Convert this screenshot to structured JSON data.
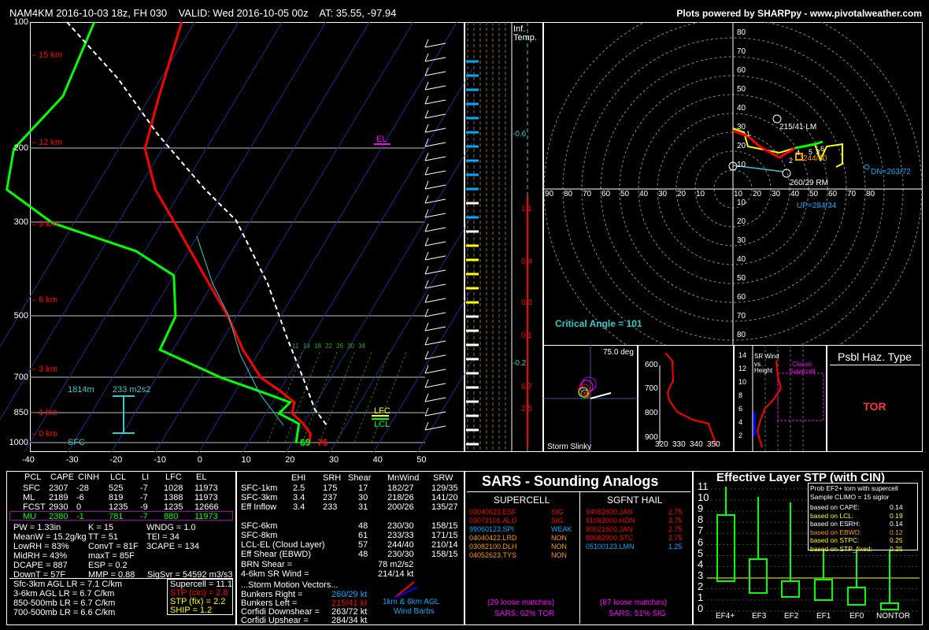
{
  "header": {
    "left": "NAM4KM 2016-10-03 18z, FH 030    VALID: Wed 2016-10-05 00z    AT: 35.55, -97.94",
    "right": "Plots powered by SHARPpy - www.pivotalweather.com"
  },
  "skewt": {
    "pressure_labels": [
      "100",
      "200",
      "300",
      "500",
      "700",
      "850",
      "1000"
    ],
    "height_labels": [
      "15 km",
      "12 km",
      "9 km",
      "6 km",
      "3 km",
      "1 km",
      "0 km"
    ],
    "temp_ticks": [
      "-40",
      "-30",
      "-20",
      "-10",
      "0",
      "10",
      "20",
      "30",
      "40",
      "50"
    ],
    "mixing_ratio_labels": [
      "11",
      "14",
      "18",
      "22",
      "26",
      "30",
      "34"
    ],
    "el_label": "EL",
    "lfc_label": "LFC",
    "lcl_label": "LCL",
    "eff_layer_bottom": "1814m",
    "eff_layer_srh": "233 m2s2",
    "sfc_label": "SFC",
    "sfc_dew": "69",
    "sfc_temp": "76"
  },
  "chart_data": [
    {
      "type": "line",
      "title": "",
      "xlabel": "",
      "ylabel": "",
      "series": [
        {
          "name": "Temperature",
          "points": [
            [
              100,
              -63
            ],
            [
              150,
              -58
            ],
            [
              200,
              -54
            ],
            [
              250,
              -46
            ],
            [
              300,
              -37
            ],
            [
              400,
              -23
            ],
            [
              500,
              -12
            ],
            [
              600,
              -4
            ],
            [
              700,
              4
            ],
            [
              750,
              10
            ],
            [
              800,
              15
            ],
            [
              850,
              16
            ],
            [
              900,
              20
            ],
            [
              950,
              23
            ],
            [
              1000,
              24
            ]
          ]
        },
        {
          "name": "Dewpoint",
          "points": [
            [
              100,
              -83
            ],
            [
              150,
              -80
            ],
            [
              200,
              -84
            ],
            [
              250,
              -80
            ],
            [
              300,
              -65
            ],
            [
              350,
              -42
            ],
            [
              400,
              -30
            ],
            [
              500,
              -24
            ],
            [
              600,
              -23
            ],
            [
              700,
              -5
            ],
            [
              750,
              5
            ],
            [
              800,
              14
            ],
            [
              850,
              13
            ],
            [
              900,
              19
            ],
            [
              950,
              20
            ],
            [
              1000,
              21
            ]
          ]
        }
      ]
    }
  ],
  "inflow": {
    "title1": "Inf.",
    "title2": "Temp.",
    "labels": [
      "-0.6",
      "1.1",
      "0.4",
      "0.3",
      "0.1",
      "-0.2",
      "6.7",
      "2.5"
    ]
  },
  "hodograph": {
    "x_labels": [
      "90",
      "80",
      "70",
      "60",
      "50",
      "40",
      "30",
      "20",
      "10",
      "10",
      "20",
      "30",
      "40",
      "50",
      "60",
      "70",
      "80"
    ],
    "y_labels": [
      "80",
      "70",
      "60",
      "50",
      "40",
      "30",
      "20",
      "10",
      "10",
      "20",
      "30",
      "40",
      "50",
      "60",
      "70",
      "80"
    ],
    "lm": "215/41 LM",
    "rm": "260/29 RM",
    "mean": "244/40",
    "dn": "DN=263/72",
    "up": "UP=284/34",
    "critical_angle": "Critical Angle = 101",
    "pts": [
      "1",
      "3",
      "4",
      "5",
      "6",
      "2"
    ]
  },
  "slinky": {
    "deg": "75.0 deg",
    "label": "Storm Slinky"
  },
  "thetae": {
    "p_labels": [
      "600",
      "700",
      "800",
      "900"
    ],
    "x_labels": [
      "320",
      "330",
      "340",
      "350"
    ]
  },
  "srwind": {
    "y_labels": [
      "14",
      "12",
      "10",
      "8",
      "6",
      "4",
      "2"
    ],
    "title": "SR Wind",
    "vs": "vs.",
    "height": "Height",
    "classic1": "Classic",
    "classic2": "Supercell"
  },
  "hazard": {
    "title": "Psbl Haz. Type",
    "value": "TOR"
  },
  "parcels": {
    "headers": [
      "PCL",
      "CAPE",
      "CINH",
      "LCL",
      "LI",
      "LFC",
      "EL"
    ],
    "rows": [
      [
        "SFC",
        "2307",
        "-28",
        "525",
        "-7",
        "1028",
        "11973"
      ],
      [
        "ML",
        "2189",
        "-6",
        "819",
        "-7",
        "1388",
        "11973"
      ],
      [
        "FCST",
        "2930",
        "0",
        "1235",
        "-9",
        "1235",
        "12666"
      ],
      [
        "MU",
        "2380",
        "-1",
        "781",
        "-7",
        "880",
        "11973"
      ]
    ],
    "left_lines": [
      "PW = 1.33in",
      "MeanW = 15.2g/kg",
      "LowRH = 83%",
      "MidRH = 43%",
      "DCAPE = 887",
      "DownT = 57F"
    ],
    "mid_lines": [
      "K = 15",
      "TT = 51",
      "ConvT = 81F",
      "maxT = 85F",
      "ESP = 0.2",
      "MMP = 0.88"
    ],
    "right_lines": [
      "WNDG = 1.0",
      "TEI = 34",
      "3CAPE = 134",
      "",
      "",
      "SigSvr = 54592 m3/s3"
    ],
    "lapse": [
      "Sfc-3km AGL LR = 7.1 C/km",
      "3-6km AGL LR = 6.7 C/km",
      "850-500mb LR = 6.7 C/km",
      "700-500mb LR = 6.6 C/km"
    ],
    "comp": [
      "Supercell = 11.1",
      "STP (cin) = 2.8",
      "STP (fix) = 2.2",
      "SHIP = 1.2"
    ]
  },
  "kinematics": {
    "headers": [
      "EHI",
      "SRH",
      "Shear",
      "MnWind",
      "SRW"
    ],
    "rows": [
      [
        "SFC-1km",
        "2.5",
        "175",
        "17",
        "182/27",
        "129/35"
      ],
      [
        "SFC-3km",
        "3.4",
        "237",
        "30",
        "218/26",
        "141/20"
      ],
      [
        "Eff Inflow",
        "3.4",
        "233",
        "31",
        "200/26",
        "135/27"
      ],
      [
        "",
        "",
        "",
        "",
        "",
        ""
      ],
      [
        "SFC-6km",
        "",
        "",
        "48",
        "230/30",
        "158/15"
      ],
      [
        "SFC-8km",
        "",
        "",
        "61",
        "233/33",
        "171/15"
      ],
      [
        "LCL-EL (Cloud Layer)",
        "",
        "",
        "57",
        "244/40",
        "210/14"
      ],
      [
        "Eff Shear (EBWD)",
        "",
        "",
        "48",
        "230/30",
        "158/15"
      ]
    ],
    "brn_label": "BRN Shear =",
    "brn_value": "78 m2/s2",
    "sr_label": "4-6km SR Wind =",
    "sr_value": "214/14 kt",
    "motion_title": "...Storm Motion Vectors...",
    "motions": [
      [
        "Bunkers Right =",
        "260/29 kt"
      ],
      [
        "Bunkers Left =",
        "215/41 kt"
      ],
      [
        "Corfidi Downshear =",
        "263/72 kt"
      ],
      [
        "Corfidi Upshear =",
        "284/34 kt"
      ]
    ],
    "barb_label1": "1km & 6km AGL",
    "barb_label2": "Wind Barbs"
  },
  "sars": {
    "title": "SARS - Sounding Analogs",
    "supercell_title": "SUPERCELL",
    "hail_title": "SGFNT HAIL",
    "supercell": [
      [
        "03040623.ESF",
        "SIG"
      ],
      [
        "03072101.ALO",
        "SIG"
      ],
      [
        "99060123.SPI",
        "WEAK"
      ],
      [
        "04040422.LRD",
        "NON"
      ],
      [
        "03082100.DLH",
        "NON"
      ],
      [
        "04052623.TYS",
        "NON"
      ]
    ],
    "hail": [
      [
        "94062600.JAN",
        "2.75"
      ],
      [
        "91062000.HON",
        "2.75"
      ],
      [
        "90021600.JAN",
        "2.75"
      ],
      [
        "89082900.STC",
        "2.75"
      ],
      [
        "05100123.LMN",
        "1.25"
      ]
    ],
    "sup_matches": "(29 loose matches)",
    "sup_pct": "SARS: 62% TOR",
    "hail_matches": "(87 loose matches)",
    "hail_pct": "SARS: 51% SIG"
  },
  "stp": {
    "title": "Effective Layer STP (with CIN)",
    "y_labels": [
      "11",
      "10",
      "9",
      "8",
      "7",
      "6",
      "5",
      "4",
      "3",
      "2",
      "1",
      "0"
    ],
    "x_labels": [
      "EF4+",
      "EF3",
      "EF2",
      "EF1",
      "EF0",
      "NONTOR"
    ],
    "box1": "Prob EF2+ torn with supercell",
    "box2": "Sample CLIMO = 15 sigtor",
    "box_rows": [
      [
        "based on CAPE:",
        "0.14"
      ],
      [
        "based on LCL:",
        "0.19"
      ],
      [
        "based on ESRH:",
        "0.14"
      ],
      [
        "based on EBWD:",
        "0.12"
      ],
      [
        "based on STPC:",
        "0.25"
      ],
      [
        "based on STP_fixed:",
        "0.25"
      ]
    ]
  }
}
